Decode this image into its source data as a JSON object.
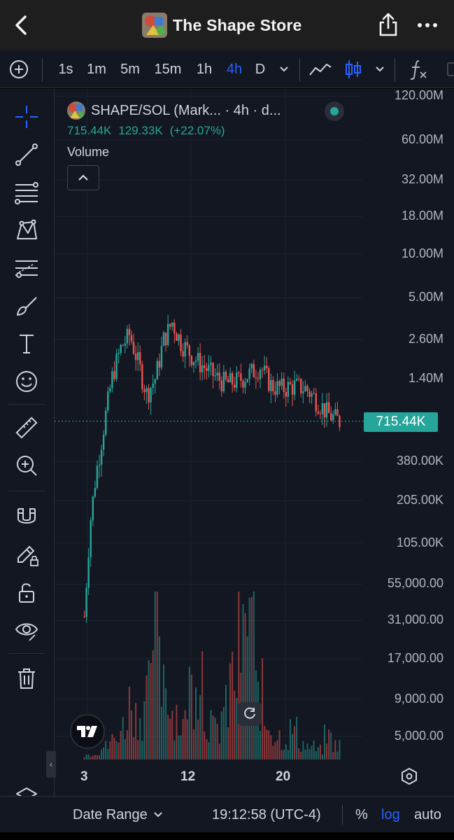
{
  "header": {
    "title": "The Shape Store",
    "icons": {
      "back": "chevron-left-icon",
      "share": "share-icon",
      "more": "more-horizontal-icon"
    }
  },
  "toolbar": {
    "intervals": [
      "1s",
      "1m",
      "5m",
      "15m",
      "1h",
      "4h",
      "D"
    ],
    "active_interval": "4h"
  },
  "legend": {
    "symbol": "SHAPE/SOL (Mark... · 4h · d...",
    "values": [
      "715.44K",
      "129.33K",
      "(+22.07%)"
    ],
    "indicator": "Volume"
  },
  "chart_data": {
    "type": "candlestick",
    "title": "SHAPE/SOL · 4h",
    "scale": "log",
    "y_tick_labels": [
      "120.00M",
      "60.00M",
      "32.00M",
      "18.00M",
      "10.00M",
      "5.00M",
      "2.60M",
      "1.40M",
      "380.00K",
      "205.00K",
      "105.00K",
      "55,000.00",
      "31,000.00",
      "17,000.00",
      "9,000.00",
      "5,000.00"
    ],
    "y_tick_values": [
      120000000,
      60000000,
      32000000,
      18000000,
      10000000,
      5000000,
      2600000,
      1400000,
      380000,
      205000,
      105000,
      55000,
      31000,
      17000,
      9000,
      5000
    ],
    "x_tick_labels": [
      "3",
      "12",
      "20"
    ],
    "last_price": "715.44K",
    "last_price_value": 715440,
    "up_color": "#26a69a",
    "down_color": "#ef5350",
    "price_path": [
      [
        0,
        33000
      ],
      [
        2,
        140000
      ],
      [
        4,
        300000
      ],
      [
        6,
        520000
      ],
      [
        8,
        900000
      ],
      [
        10,
        1500000
      ],
      [
        13,
        2300000
      ],
      [
        16,
        2800000
      ],
      [
        19,
        1800000
      ],
      [
        22,
        1100000
      ],
      [
        25,
        1400000
      ],
      [
        28,
        2600000
      ],
      [
        31,
        3400000
      ],
      [
        34,
        2500000
      ],
      [
        38,
        2000000
      ],
      [
        42,
        1700000
      ],
      [
        46,
        1450000
      ],
      [
        50,
        1300000
      ],
      [
        54,
        1350000
      ],
      [
        58,
        1500000
      ],
      [
        62,
        1700000
      ],
      [
        66,
        1250000
      ],
      [
        70,
        1200000
      ],
      [
        74,
        1250000
      ],
      [
        78,
        1200000
      ],
      [
        82,
        1000000
      ],
      [
        86,
        800000
      ],
      [
        90,
        715440
      ]
    ],
    "volume_series": [
      3,
      5,
      8,
      12,
      20,
      35,
      28,
      40,
      90,
      55,
      30,
      22,
      45,
      60,
      25,
      18,
      30,
      50,
      70,
      95,
      40,
      22,
      15,
      12,
      18,
      10,
      8,
      6,
      14,
      9
    ]
  },
  "status_bar": {
    "date_range": "Date Range",
    "time": "19:12:58 (UTC-4)",
    "percent": "%",
    "log": "log",
    "auto": "auto"
  }
}
